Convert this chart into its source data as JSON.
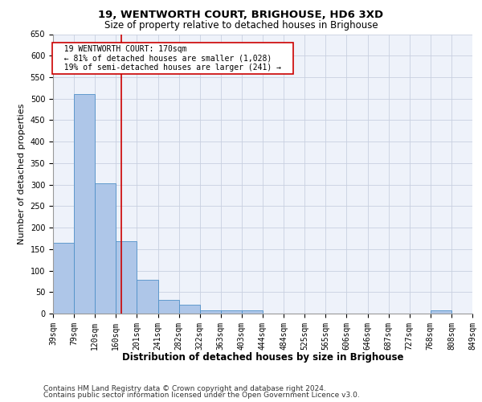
{
  "title": "19, WENTWORTH COURT, BRIGHOUSE, HD6 3XD",
  "subtitle": "Size of property relative to detached houses in Brighouse",
  "xlabel": "Distribution of detached houses by size in Brighouse",
  "ylabel": "Number of detached properties",
  "bar_values": [
    165,
    510,
    303,
    168,
    78,
    32,
    20,
    8,
    8,
    8,
    0,
    0,
    0,
    0,
    0,
    0,
    0,
    0,
    8,
    0
  ],
  "xtick_labels": [
    "39sqm",
    "79sqm",
    "120sqm",
    "160sqm",
    "201sqm",
    "241sqm",
    "282sqm",
    "322sqm",
    "363sqm",
    "403sqm",
    "444sqm",
    "484sqm",
    "525sqm",
    "565sqm",
    "606sqm",
    "646sqm",
    "687sqm",
    "727sqm",
    "768sqm",
    "808sqm",
    "849sqm"
  ],
  "bar_color": "#aec6e8",
  "bar_edge_color": "#5090c8",
  "vline_x": 3.24,
  "vline_color": "#cc0000",
  "ylim": [
    0,
    650
  ],
  "yticks": [
    0,
    50,
    100,
    150,
    200,
    250,
    300,
    350,
    400,
    450,
    500,
    550,
    600,
    650
  ],
  "annotation_title": "19 WENTWORTH COURT: 170sqm",
  "annotation_line1": "← 81% of detached houses are smaller (1,028)",
  "annotation_line2": "19% of semi-detached houses are larger (241) →",
  "annotation_box_color": "#ffffff",
  "annotation_box_edge": "#cc0000",
  "footer_line1": "Contains HM Land Registry data © Crown copyright and database right 2024.",
  "footer_line2": "Contains public sector information licensed under the Open Government Licence v3.0.",
  "bg_color": "#eef2fa",
  "grid_color": "#c8d0e0",
  "title_fontsize": 9.5,
  "subtitle_fontsize": 8.5,
  "ylabel_fontsize": 8,
  "xlabel_fontsize": 8.5,
  "tick_fontsize": 7,
  "annotation_fontsize": 7,
  "footer_fontsize": 6.5
}
